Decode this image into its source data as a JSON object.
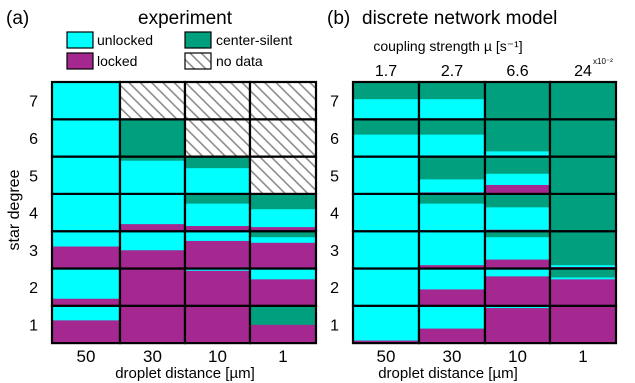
{
  "colors": {
    "unlocked": "#00ffff",
    "locked": "#a4288f",
    "center_silent": "#00a07f",
    "no_data_hatch": "#8c8c8c",
    "cell_border": "#000000"
  },
  "legend": {
    "unlocked": "unlocked",
    "locked": "locked",
    "center_silent": "center-silent",
    "no_data": "no data"
  },
  "chart_data": [
    {
      "type": "stacked-mosaic",
      "panel_label": "(a)",
      "title": "experiment",
      "ylabel": "star degree",
      "xlabel": "droplet distance [µm]",
      "categories": [
        "50",
        "30",
        "10",
        "1"
      ],
      "rows": [
        "1",
        "2",
        "3",
        "4",
        "5",
        "6",
        "7"
      ],
      "series_order": [
        "locked",
        "unlocked",
        "center_silent"
      ],
      "cells": [
        [
          {
            "locked": 0.62,
            "unlocked": 0.38,
            "center_silent": 0
          },
          {
            "locked": 1,
            "unlocked": 0,
            "center_silent": 0
          },
          {
            "locked": 1,
            "unlocked": 0,
            "center_silent": 0
          },
          {
            "locked": 0.5,
            "unlocked": 0,
            "center_silent": 0.5
          }
        ],
        [
          {
            "locked": 0.2,
            "unlocked": 0.8,
            "center_silent": 0
          },
          {
            "locked": 1,
            "unlocked": 0,
            "center_silent": 0
          },
          {
            "locked": 0.95,
            "unlocked": 0.05,
            "center_silent": 0
          },
          {
            "locked": 0.72,
            "unlocked": 0.28,
            "center_silent": 0
          }
        ],
        [
          {
            "locked": 0.6,
            "unlocked": 0.4,
            "center_silent": 0
          },
          {
            "locked": 0.5,
            "unlocked": 0.5,
            "center_silent": 0
          },
          {
            "locked": 0.75,
            "unlocked": 0.25,
            "center_silent": 0
          },
          {
            "locked": 0.7,
            "unlocked": 0.15,
            "center_silent": 0.15
          }
        ],
        [
          {
            "locked": 0,
            "unlocked": 1,
            "center_silent": 0
          },
          {
            "locked": 0.2,
            "unlocked": 0.8,
            "center_silent": 0
          },
          {
            "locked": 0.15,
            "unlocked": 0.6,
            "center_silent": 0.25
          },
          {
            "locked": 0.12,
            "unlocked": 0.48,
            "center_silent": 0.4
          }
        ],
        [
          {
            "locked": 0,
            "unlocked": 1,
            "center_silent": 0
          },
          {
            "locked": 0,
            "unlocked": 0.9,
            "center_silent": 0.1
          },
          {
            "locked": 0,
            "unlocked": 0.7,
            "center_silent": 0.3
          },
          {
            "no_data": true
          }
        ],
        [
          {
            "locked": 0,
            "unlocked": 1,
            "center_silent": 0
          },
          {
            "locked": 0,
            "unlocked": 0,
            "center_silent": 1
          },
          {
            "no_data": true
          },
          {
            "no_data": true
          }
        ],
        [
          {
            "locked": 0,
            "unlocked": 1,
            "center_silent": 0
          },
          {
            "no_data": true
          },
          {
            "no_data": true
          },
          {
            "no_data": true
          }
        ]
      ]
    },
    {
      "type": "stacked-mosaic",
      "panel_label": "(b)",
      "title": "discrete network model",
      "ylabel": "",
      "xlabel": "droplet distance [µm]",
      "top_axis_label": "coupling strength µ [s⁻¹]",
      "top_axis_multiplier": "x10⁻²",
      "top_ticks": [
        "1.7",
        "2.7",
        "6.6",
        "24"
      ],
      "categories": [
        "50",
        "30",
        "10",
        "1"
      ],
      "rows": [
        "1",
        "2",
        "3",
        "4",
        "5",
        "6",
        "7"
      ],
      "series_order": [
        "locked",
        "unlocked",
        "center_silent"
      ],
      "cells": [
        [
          {
            "locked": 0.08,
            "unlocked": 0.92,
            "center_silent": 0
          },
          {
            "locked": 0.4,
            "unlocked": 0.6,
            "center_silent": 0
          },
          {
            "locked": 0.95,
            "unlocked": 0.05,
            "center_silent": 0
          },
          {
            "locked": 1,
            "unlocked": 0,
            "center_silent": 0
          }
        ],
        [
          {
            "locked": 0,
            "unlocked": 1,
            "center_silent": 0
          },
          {
            "locked": 0.45,
            "unlocked": 0.55,
            "center_silent": 0
          },
          {
            "locked": 0.8,
            "unlocked": 0.2,
            "center_silent": 0
          },
          {
            "locked": 0.72,
            "unlocked": 0.05,
            "center_silent": 0.23
          }
        ],
        [
          {
            "locked": 0,
            "unlocked": 1,
            "center_silent": 0
          },
          {
            "locked": 0.1,
            "unlocked": 0.9,
            "center_silent": 0
          },
          {
            "locked": 0.25,
            "unlocked": 0.6,
            "center_silent": 0.15
          },
          {
            "locked": 0.05,
            "unlocked": 0.05,
            "center_silent": 0.9
          }
        ],
        [
          {
            "locked": 0,
            "unlocked": 1,
            "center_silent": 0
          },
          {
            "locked": 0,
            "unlocked": 0.75,
            "center_silent": 0.25
          },
          {
            "locked": 0.05,
            "unlocked": 0.6,
            "center_silent": 0.35
          },
          {
            "locked": 0,
            "unlocked": 0,
            "center_silent": 1
          }
        ],
        [
          {
            "locked": 0,
            "unlocked": 1,
            "center_silent": 0
          },
          {
            "locked": 0.05,
            "unlocked": 0.35,
            "center_silent": 0.6
          },
          {
            "locked": 0.25,
            "unlocked": 0.3,
            "center_silent": 0.45
          },
          {
            "locked": 0,
            "unlocked": 0,
            "center_silent": 1
          }
        ],
        [
          {
            "locked": 0,
            "unlocked": 0.6,
            "center_silent": 0.4
          },
          {
            "locked": 0,
            "unlocked": 0.6,
            "center_silent": 0.4
          },
          {
            "locked": 0,
            "unlocked": 0.15,
            "center_silent": 0.85
          },
          {
            "locked": 0,
            "unlocked": 0,
            "center_silent": 1
          }
        ],
        [
          {
            "locked": 0,
            "unlocked": 0.55,
            "center_silent": 0.45
          },
          {
            "locked": 0,
            "unlocked": 0.55,
            "center_silent": 0.45
          },
          {
            "locked": 0,
            "unlocked": 0,
            "center_silent": 1
          },
          {
            "locked": 0,
            "unlocked": 0,
            "center_silent": 1
          }
        ]
      ]
    }
  ]
}
